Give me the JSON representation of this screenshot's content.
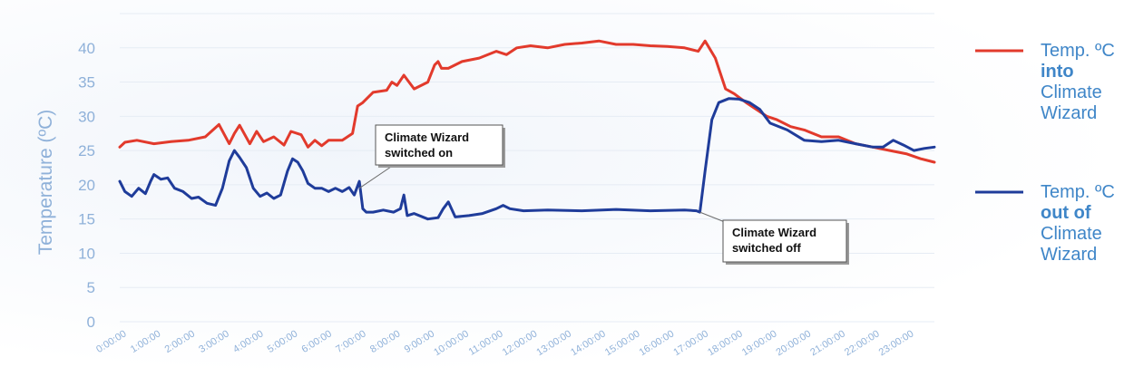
{
  "chart_data": {
    "type": "line",
    "title": "",
    "xlabel": "",
    "ylabel": "Temperature (ºC)",
    "ylim": [
      0,
      45
    ],
    "y_ticks": [
      0,
      5,
      10,
      15,
      20,
      25,
      30,
      35,
      40
    ],
    "x_ticks": [
      "0:00:00",
      "1:00:00",
      "2:00:00",
      "3:00:00",
      "4:00:00",
      "5:00:00",
      "6:00:00",
      "7:00:00",
      "8:00:00",
      "9:00:00",
      "10:00:00",
      "11:00:00",
      "12:00:00",
      "13:00:00",
      "14:00:00",
      "15:00:00",
      "16:00:00",
      "17:00:00",
      "18:00:00",
      "19:00:00",
      "20:00:00",
      "21:00:00",
      "22:00:00",
      "23:00:00"
    ],
    "x_unit": "hours",
    "xlim": [
      0,
      23.8
    ],
    "grid": true,
    "legend_position": "right",
    "series": [
      {
        "name": "Temp. ºC into Climate Wizard",
        "name_lines": [
          {
            "text": "Temp. ºC",
            "bold": false
          },
          {
            "text": "into",
            "bold": true
          },
          {
            "text": "Climate",
            "bold": false
          },
          {
            "text": "Wizard",
            "bold": false
          }
        ],
        "color": "#e23a2c",
        "x": [
          0,
          0.15,
          0.5,
          1,
          1.5,
          2,
          2.5,
          2.9,
          3.2,
          3.35,
          3.5,
          3.8,
          4.0,
          4.2,
          4.5,
          4.8,
          5.0,
          5.3,
          5.5,
          5.7,
          5.9,
          6.1,
          6.5,
          6.8,
          6.95,
          7.1,
          7.4,
          7.8,
          7.95,
          8.1,
          8.3,
          8.6,
          9.0,
          9.2,
          9.3,
          9.4,
          9.6,
          10.0,
          10.5,
          11.0,
          11.3,
          11.6,
          12.0,
          12.5,
          13.0,
          13.5,
          14.0,
          14.5,
          15.0,
          15.5,
          16.0,
          16.5,
          16.9,
          17.1,
          17.4,
          17.7,
          17.95,
          18.3,
          18.6,
          18.9,
          19.2,
          19.6,
          20.0,
          20.5,
          21.0,
          21.5,
          22.0,
          22.5,
          23.0,
          23.4,
          23.8
        ],
        "values": [
          25.5,
          26.2,
          26.5,
          26.0,
          26.3,
          26.5,
          27.0,
          28.8,
          26.0,
          27.5,
          28.7,
          26.0,
          27.8,
          26.3,
          27.0,
          25.8,
          27.8,
          27.3,
          25.5,
          26.5,
          25.7,
          26.5,
          26.5,
          27.5,
          31.5,
          32.0,
          33.5,
          33.8,
          35.0,
          34.5,
          36.0,
          34.0,
          35.0,
          37.5,
          38.0,
          37.0,
          37.0,
          38.0,
          38.5,
          39.5,
          39.0,
          40.0,
          40.3,
          40.0,
          40.5,
          40.7,
          41.0,
          40.5,
          40.5,
          40.3,
          40.2,
          40.0,
          39.5,
          41.0,
          38.5,
          34.0,
          33.3,
          32.0,
          31.0,
          30.0,
          29.5,
          28.5,
          28.0,
          27.0,
          27.0,
          26.0,
          25.5,
          25.0,
          24.5,
          23.8,
          23.3
        ]
      },
      {
        "name": "Temp. ºC out of Climate Wizard",
        "name_lines": [
          {
            "text": "Temp. ºC",
            "bold": false
          },
          {
            "text": "out of",
            "bold": true
          },
          {
            "text": "Climate",
            "bold": false
          },
          {
            "text": "Wizard",
            "bold": false
          }
        ],
        "color": "#1f3c9a",
        "x": [
          0,
          0.15,
          0.35,
          0.55,
          0.75,
          0.9,
          1.0,
          1.2,
          1.4,
          1.6,
          1.85,
          2.1,
          2.3,
          2.55,
          2.8,
          3.0,
          3.2,
          3.35,
          3.5,
          3.7,
          3.9,
          4.1,
          4.3,
          4.5,
          4.7,
          4.9,
          5.05,
          5.2,
          5.35,
          5.5,
          5.7,
          5.9,
          6.1,
          6.3,
          6.5,
          6.7,
          6.85,
          7.0,
          7.1,
          7.2,
          7.4,
          7.7,
          8.0,
          8.2,
          8.3,
          8.4,
          8.6,
          9.0,
          9.3,
          9.45,
          9.6,
          9.8,
          10.2,
          10.6,
          11.0,
          11.2,
          11.4,
          11.8,
          12.5,
          13.5,
          14.5,
          15.5,
          16.5,
          16.85,
          16.95,
          17.1,
          17.3,
          17.5,
          17.8,
          18.1,
          18.4,
          18.7,
          19.0,
          19.5,
          20.0,
          20.5,
          21.0,
          21.5,
          22.0,
          22.3,
          22.6,
          22.9,
          23.2,
          23.5,
          23.8
        ],
        "values": [
          20.5,
          19.0,
          18.3,
          19.5,
          18.7,
          20.5,
          21.5,
          20.8,
          21.0,
          19.5,
          19.0,
          18.0,
          18.2,
          17.3,
          17.0,
          19.5,
          23.5,
          25.0,
          24.0,
          22.5,
          19.5,
          18.3,
          18.8,
          18.0,
          18.5,
          22.0,
          23.8,
          23.3,
          22.0,
          20.2,
          19.5,
          19.5,
          19.0,
          19.5,
          19.0,
          19.6,
          18.5,
          20.5,
          16.5,
          16.0,
          16.0,
          16.3,
          16.0,
          16.5,
          18.5,
          15.5,
          15.8,
          15.0,
          15.2,
          16.5,
          17.5,
          15.3,
          15.5,
          15.8,
          16.5,
          17.0,
          16.5,
          16.2,
          16.3,
          16.2,
          16.4,
          16.2,
          16.3,
          16.2,
          16.0,
          22.0,
          29.5,
          32.0,
          32.6,
          32.5,
          32.0,
          31.0,
          29.0,
          28.0,
          26.5,
          26.3,
          26.5,
          26.0,
          25.5,
          25.5,
          26.5,
          25.8,
          25.0,
          25.3,
          25.5
        ]
      }
    ],
    "annotations": [
      {
        "id": "on",
        "lines": [
          "Climate Wizard",
          "switched on"
        ],
        "x": 7.0,
        "y": 19.5
      },
      {
        "id": "off",
        "lines": [
          "Climate Wizard",
          "switched off"
        ],
        "x": 16.95,
        "y": 16.0
      }
    ]
  }
}
